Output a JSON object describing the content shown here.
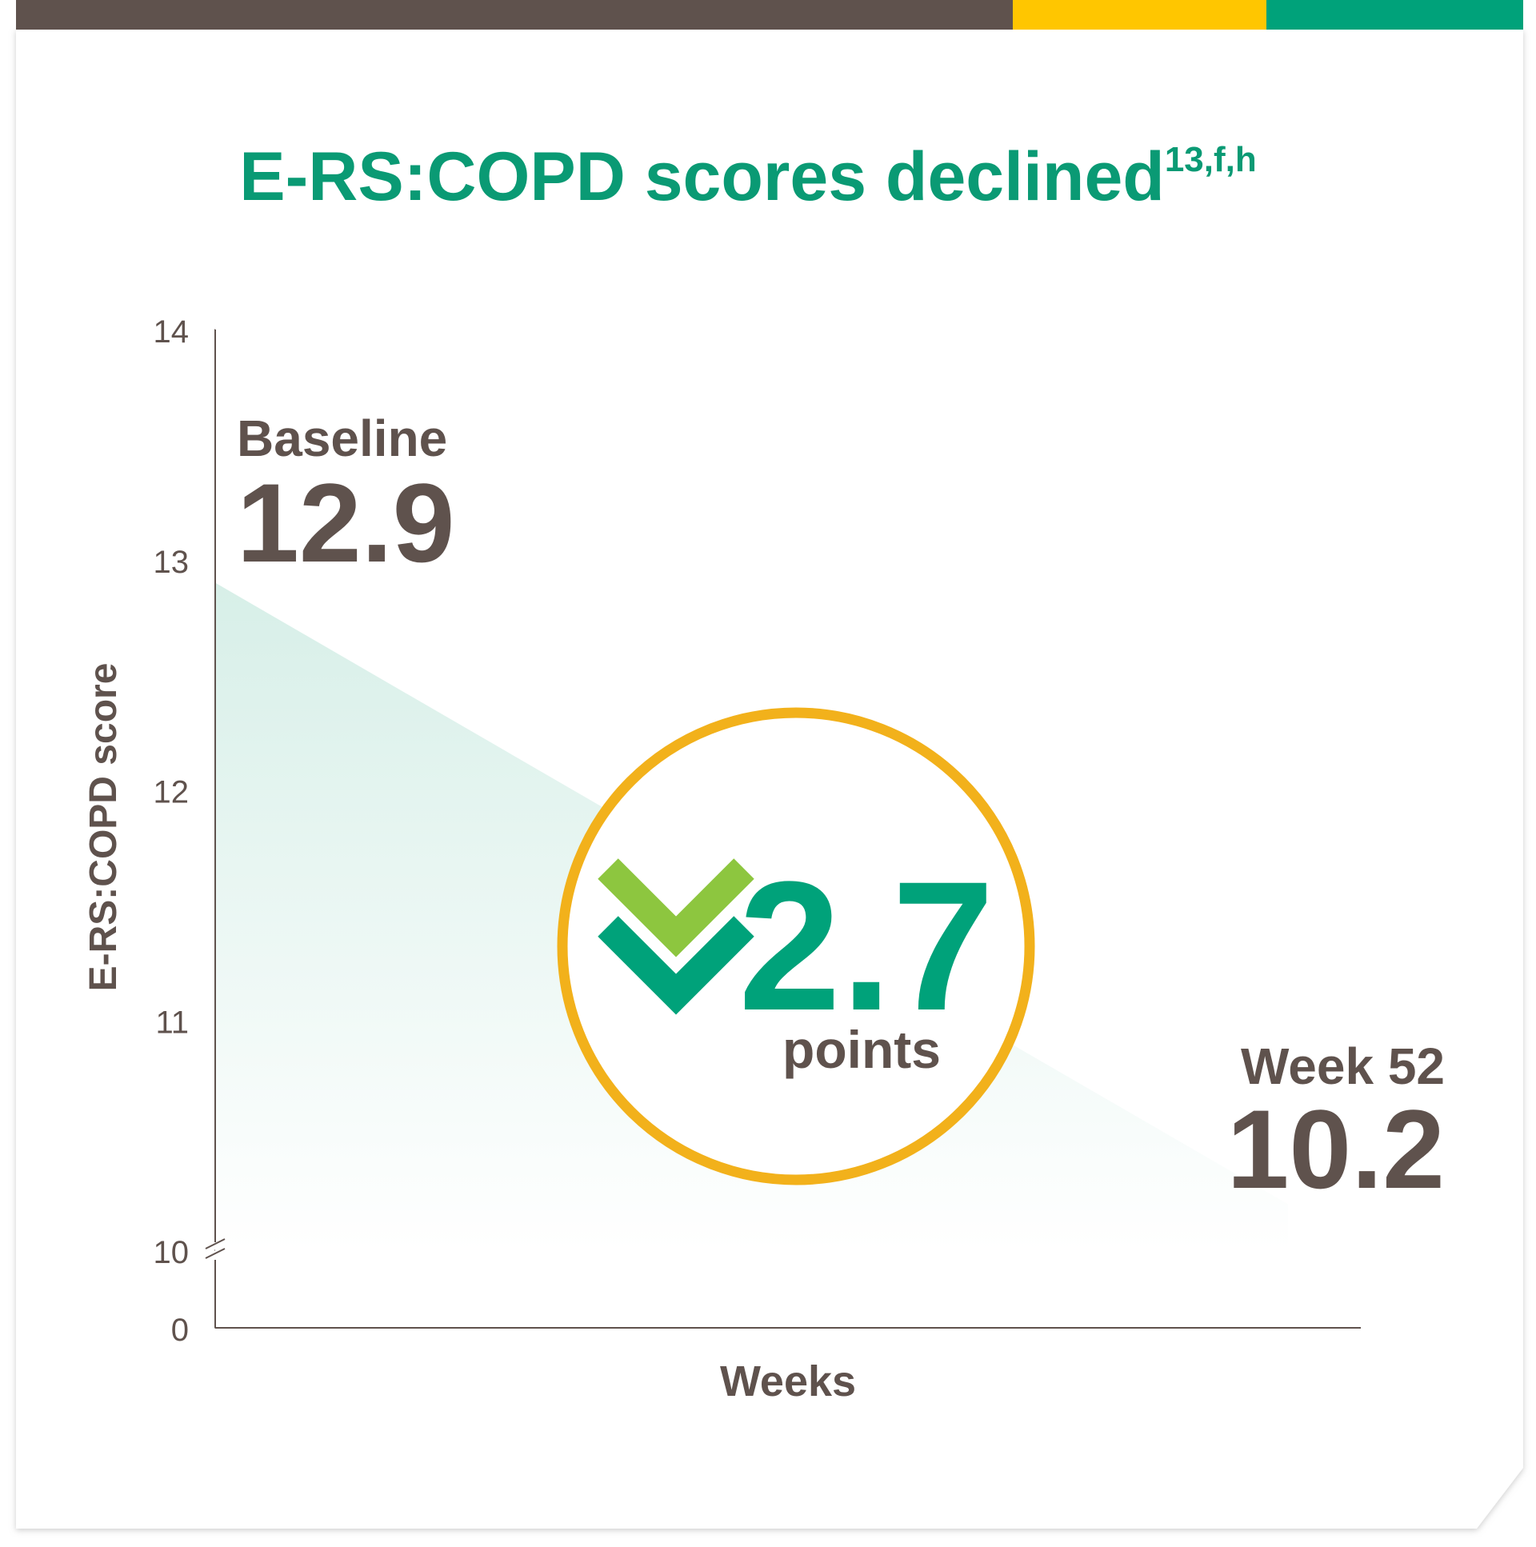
{
  "chart_data": {
    "type": "area",
    "title": "E-RS:COPD scores declined",
    "title_superscript": "13,f,h",
    "x_label": "Weeks",
    "y_label": "E-RS:COPD score",
    "categories": [
      "Baseline",
      "Week 52"
    ],
    "values": [
      12.9,
      10.2
    ],
    "color": "#00a27a",
    "ylim": [
      0,
      14
    ],
    "yticks": [
      0,
      10,
      11,
      12,
      13,
      14
    ],
    "y_break": [
      0,
      10
    ],
    "annotation": {
      "value": 2.7,
      "unit": "points"
    }
  }
}
